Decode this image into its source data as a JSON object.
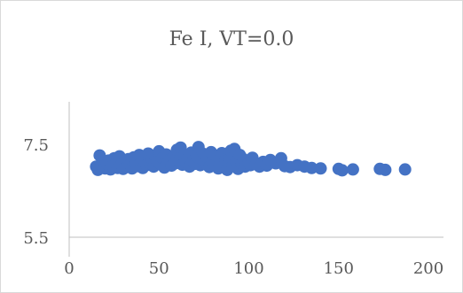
{
  "chart_data": {
    "type": "scatter",
    "title": "Fe I, VT=0.0",
    "xlabel": "",
    "ylabel": "",
    "xlim": [
      0,
      200
    ],
    "ylim": [
      5.5,
      8.0
    ],
    "x_ticks": [
      "0",
      "50",
      "100",
      "150",
      "200"
    ],
    "y_ticks": [
      "5.5",
      "7.5"
    ],
    "y_tick_values": [
      5.5,
      7.5
    ],
    "x_tick_values": [
      0,
      50,
      100,
      150,
      200
    ],
    "grid": false,
    "legend": "none",
    "marker_color": "#4472C4",
    "series": [
      {
        "name": "",
        "points": [
          [
            15,
            7.02
          ],
          [
            16,
            6.95
          ],
          [
            17,
            7.26
          ],
          [
            18,
            7.05
          ],
          [
            19,
            7.12
          ],
          [
            20,
            6.98
          ],
          [
            21,
            7.08
          ],
          [
            22,
            7.15
          ],
          [
            23,
            6.96
          ],
          [
            24,
            7.04
          ],
          [
            25,
            7.2
          ],
          [
            26,
            7.09
          ],
          [
            27,
            6.99
          ],
          [
            28,
            7.24
          ],
          [
            29,
            7.06
          ],
          [
            30,
            6.97
          ],
          [
            31,
            7.13
          ],
          [
            32,
            7.01
          ],
          [
            33,
            7.18
          ],
          [
            34,
            7.07
          ],
          [
            35,
            6.98
          ],
          [
            36,
            7.22
          ],
          [
            37,
            7.11
          ],
          [
            38,
            7.03
          ],
          [
            39,
            7.27
          ],
          [
            40,
            7.1
          ],
          [
            41,
            6.99
          ],
          [
            42,
            7.16
          ],
          [
            43,
            7.05
          ],
          [
            44,
            7.3
          ],
          [
            45,
            7.08
          ],
          [
            46,
            7.19
          ],
          [
            47,
            7.02
          ],
          [
            48,
            7.25
          ],
          [
            49,
            7.13
          ],
          [
            50,
            7.35
          ],
          [
            51,
            7.07
          ],
          [
            52,
            7.21
          ],
          [
            53,
            7.0
          ],
          [
            54,
            7.28
          ],
          [
            55,
            7.12
          ],
          [
            56,
            7.17
          ],
          [
            57,
            7.04
          ],
          [
            58,
            7.23
          ],
          [
            59,
            7.09
          ],
          [
            60,
            7.38
          ],
          [
            61,
            7.14
          ],
          [
            62,
            7.43
          ],
          [
            63,
            7.06
          ],
          [
            64,
            7.26
          ],
          [
            65,
            7.11
          ],
          [
            66,
            7.2
          ],
          [
            67,
            7.02
          ],
          [
            68,
            7.32
          ],
          [
            69,
            7.15
          ],
          [
            70,
            7.08
          ],
          [
            71,
            7.24
          ],
          [
            72,
            7.44
          ],
          [
            73,
            7.05
          ],
          [
            74,
            7.18
          ],
          [
            75,
            7.29
          ],
          [
            76,
            7.1
          ],
          [
            77,
            7.22
          ],
          [
            78,
            7.01
          ],
          [
            79,
            7.33
          ],
          [
            80,
            7.14
          ],
          [
            81,
            7.06
          ],
          [
            82,
            7.25
          ],
          [
            83,
            6.98
          ],
          [
            84,
            7.19
          ],
          [
            85,
            7.31
          ],
          [
            86,
            7.09
          ],
          [
            87,
            7.16
          ],
          [
            88,
            6.95
          ],
          [
            89,
            7.23
          ],
          [
            90,
            7.36
          ],
          [
            91,
            7.04
          ],
          [
            92,
            7.4
          ],
          [
            93,
            7.12
          ],
          [
            94,
            6.97
          ],
          [
            95,
            7.27
          ],
          [
            96,
            7.08
          ],
          [
            97,
            7.18
          ],
          [
            98,
            7.02
          ],
          [
            100,
            7.1
          ],
          [
            101,
            7.05
          ],
          [
            102,
            7.21
          ],
          [
            104,
            7.07
          ],
          [
            106,
            7.02
          ],
          [
            108,
            7.12
          ],
          [
            110,
            7.04
          ],
          [
            112,
            7.16
          ],
          [
            115,
            7.09
          ],
          [
            118,
            7.2
          ],
          [
            120,
            7.03
          ],
          [
            123,
            7.01
          ],
          [
            127,
            7.05
          ],
          [
            131,
            7.02
          ],
          [
            135,
            6.99
          ],
          [
            140,
            6.98
          ],
          [
            150,
            6.97
          ],
          [
            152,
            6.94
          ],
          [
            158,
            6.96
          ],
          [
            173,
            6.97
          ],
          [
            176,
            6.95
          ],
          [
            187,
            6.96
          ]
        ]
      }
    ]
  }
}
